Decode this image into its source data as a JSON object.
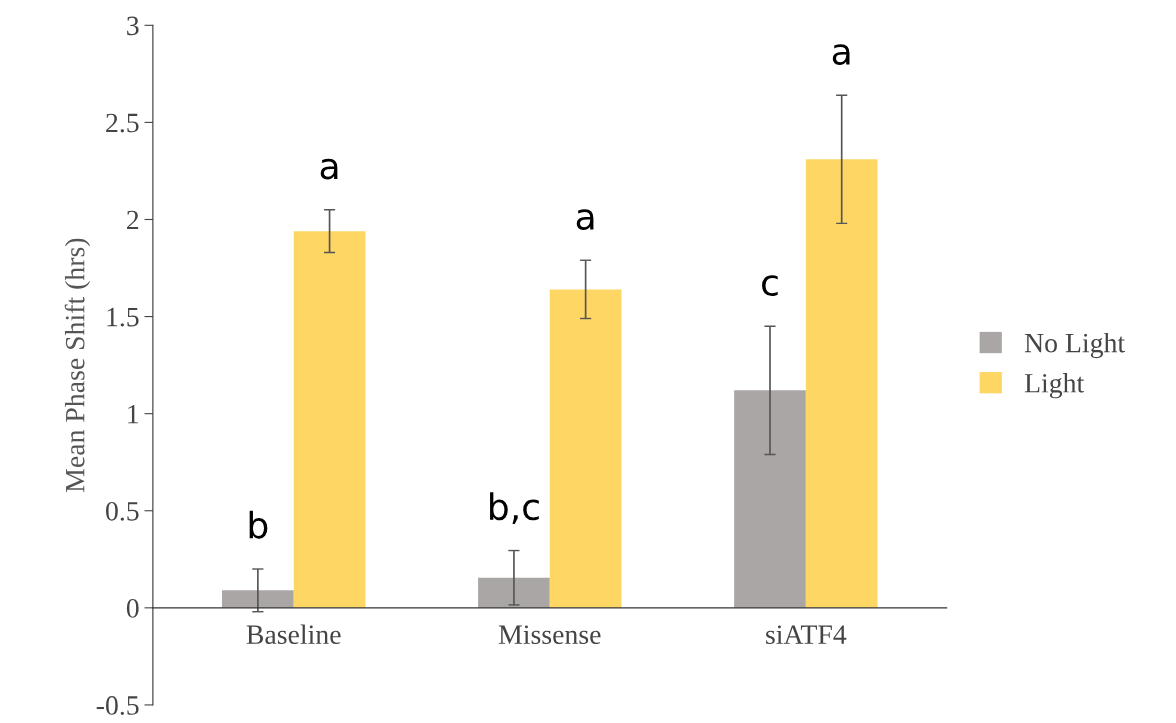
{
  "chart_data": {
    "type": "bar",
    "ylabel": "Mean Phase Shift (hrs)",
    "categories": [
      "Baseline",
      "Missense",
      "siATF4"
    ],
    "series": [
      {
        "name": "No Light",
        "color": "#aaa6a5",
        "values": [
          0.09,
          0.155,
          1.12
        ],
        "errors": [
          0.11,
          0.14,
          0.33
        ]
      },
      {
        "name": "Light",
        "color": "#fdd663",
        "values": [
          1.94,
          1.64,
          2.31
        ],
        "errors": [
          0.11,
          0.15,
          0.33
        ]
      }
    ],
    "annotations": [
      "b",
      "a",
      "b,c",
      "a",
      "c",
      "a"
    ],
    "ylim": [
      -0.5,
      3
    ],
    "yticks": [
      -0.5,
      0,
      0.5,
      1,
      1.5,
      2,
      2.5,
      3
    ],
    "grid": false,
    "legend": "right"
  }
}
